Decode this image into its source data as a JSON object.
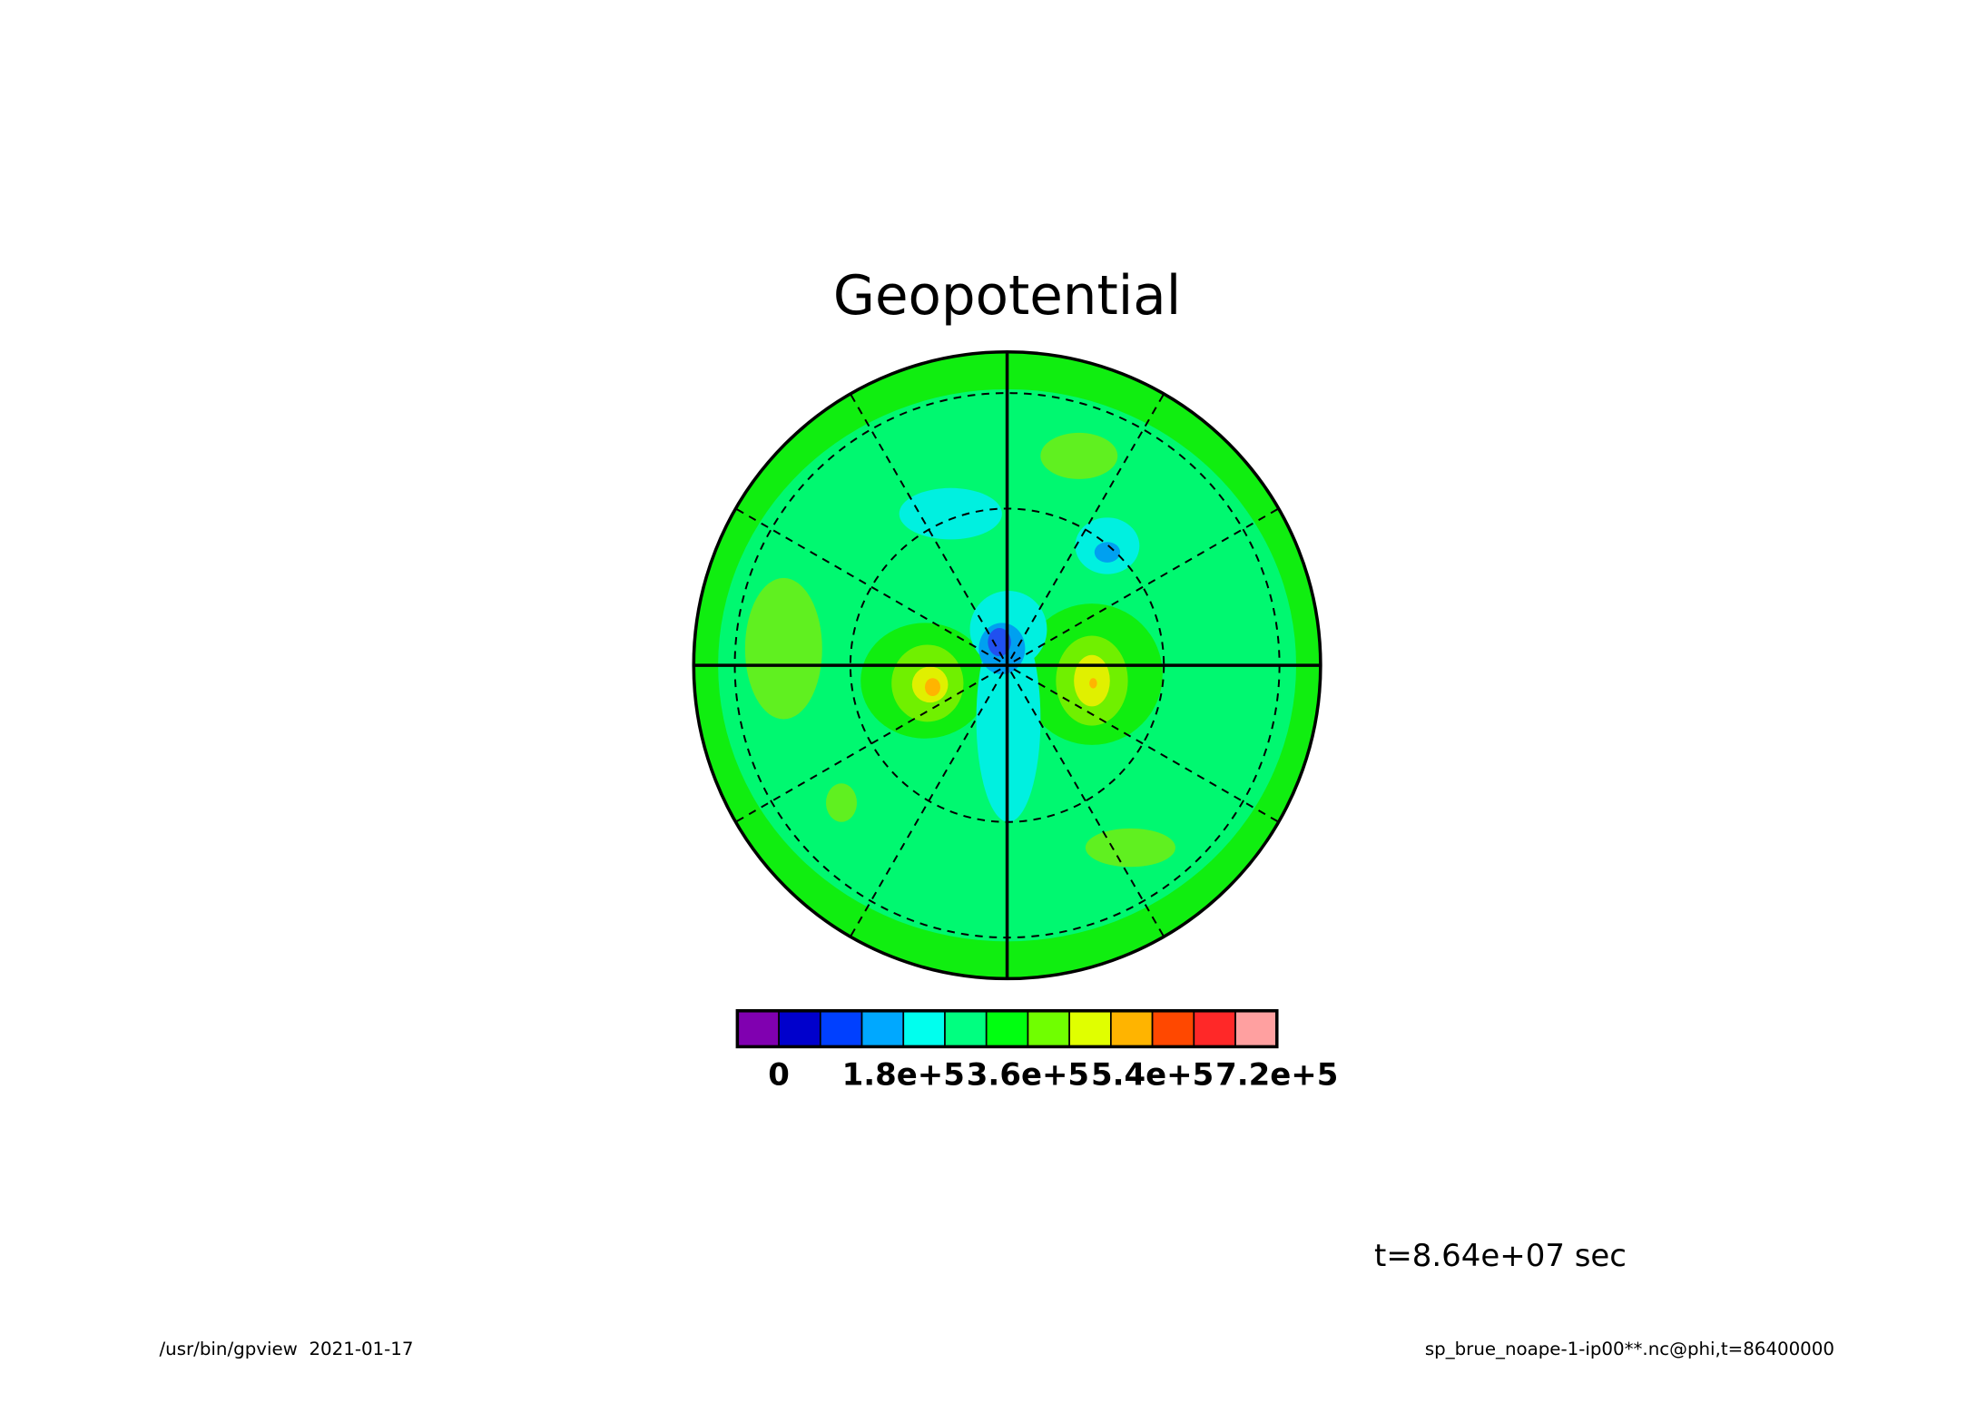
{
  "chart_data": {
    "type": "polar-contour",
    "title": "Geopotential",
    "colorbar": {
      "colors": [
        "#8000b0",
        "#0000cc",
        "#0040ff",
        "#00a8ff",
        "#00ffee",
        "#00ff80",
        "#00ff10",
        "#70ff00",
        "#e0ff00",
        "#ffb400",
        "#ff4800",
        "#ff2828",
        "#ffa0a0"
      ],
      "xlim": [
        -60000,
        720000
      ],
      "xticks": [
        0,
        {
          "value": 180000,
          "label": "1.8e+5"
        },
        {
          "value": 360000,
          "label": "3.6e+5"
        },
        {
          "value": 540000,
          "label": "5.4e+5"
        },
        {
          "value": 720000,
          "label": "7.2e+5"
        }
      ]
    },
    "annotation": "t=8.64e+07 sec",
    "footer_left": "/usr/bin/gpview  2021-01-17",
    "footer_right": "sp_brue_noape-1-ip00**.nc@phi,t=86400000"
  }
}
